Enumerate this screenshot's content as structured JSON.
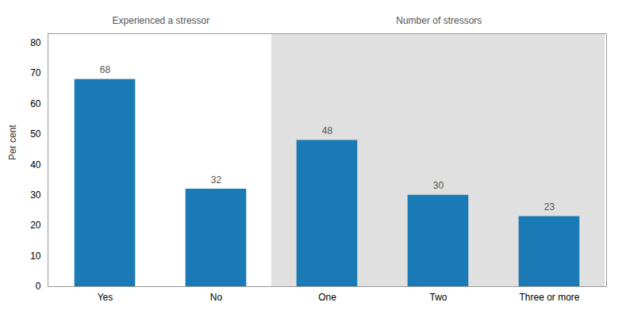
{
  "chart_data": {
    "type": "bar",
    "categories": [
      "Yes",
      "No",
      "One",
      "Two",
      "Three or more"
    ],
    "values": [
      68,
      32,
      48,
      30,
      23
    ],
    "color": "#1a7ab5",
    "ylabel": "Per cent",
    "ylim": [
      0,
      83
    ],
    "yticks": [
      0,
      10,
      20,
      30,
      40,
      50,
      60,
      70,
      80
    ],
    "grid": false,
    "data_labels": true,
    "groups": [
      {
        "name": "Experienced a stressor",
        "categories": [
          "Yes",
          "No"
        ]
      },
      {
        "name": "Number of stressors",
        "categories": [
          "One",
          "Two",
          "Three or more"
        ]
      }
    ]
  }
}
